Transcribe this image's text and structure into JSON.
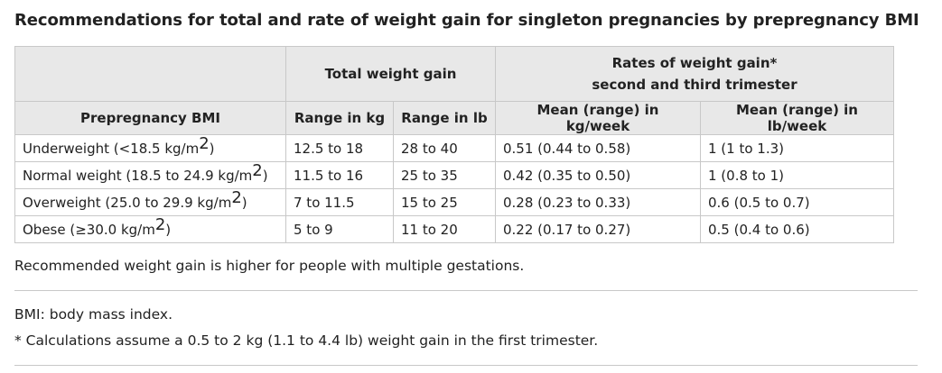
{
  "title": "Recommendations for total and rate of weight gain for singleton pregnancies by prepregnancy BMI",
  "table": {
    "group_headers": {
      "total": "Total weight gain",
      "rates_line1": "Rates of weight gain*",
      "rates_line2": "second and third trimester"
    },
    "columns": [
      "Prepregnancy BMI",
      "Range in kg",
      "Range in lb",
      "Mean (range) in kg/week",
      "Mean (range) in lb/week"
    ],
    "rows": [
      {
        "bmi": "Underweight (<18.5 kg/m",
        "sup": "2",
        "close": ")",
        "kg": "12.5 to 18",
        "lb": "28 to 40",
        "kg_week": "0.51 (0.44 to 0.58)",
        "lb_week": "1 (1 to 1.3)"
      },
      {
        "bmi": "Normal weight (18.5 to 24.9 kg/m",
        "sup": "2",
        "close": ")",
        "kg": "11.5 to 16",
        "lb": "25 to 35",
        "kg_week": "0.42 (0.35 to 0.50)",
        "lb_week": "1 (0.8 to 1)"
      },
      {
        "bmi": "Overweight (25.0 to 29.9 kg/m",
        "sup": "2",
        "close": ")",
        "kg": "7 to 11.5",
        "lb": "15 to 25",
        "kg_week": "0.28 (0.23 to 0.33)",
        "lb_week": "0.6 (0.5 to 0.7)"
      },
      {
        "bmi": "Obese (≥30.0 kg/m",
        "sup": "2",
        "close": ")",
        "kg": "5 to 9",
        "lb": "11 to 20",
        "kg_week": "0.22 (0.17 to 0.27)",
        "lb_week": "0.5 (0.4 to 0.6)"
      }
    ]
  },
  "notes": {
    "multiple": "Recommended weight gain is higher for people with multiple gestations.",
    "abbrev": "BMI: body mass index.",
    "footnote": "* Calculations assume a 0.5 to 2 kg (1.1 to 4.4 lb) weight gain in the first trimester."
  }
}
